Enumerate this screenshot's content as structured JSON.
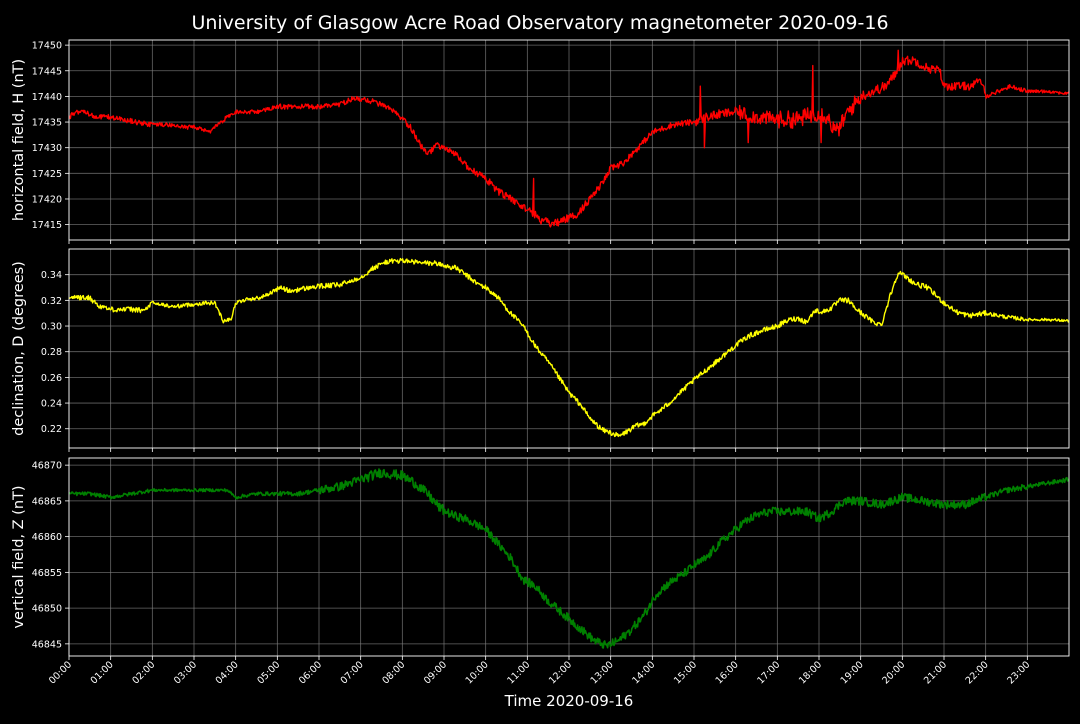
{
  "title": "University of Glasgow Acre Road Observatory magnetometer 2020-09-16",
  "chart_data": [
    {
      "type": "line",
      "ylabel": "horizontal field, H (nT)",
      "color": "#ff0000",
      "xlim": [
        0,
        24
      ],
      "ylim": [
        17412,
        17451
      ],
      "yticks": [
        17415,
        17420,
        17425,
        17430,
        17435,
        17440,
        17445,
        17450
      ],
      "ytick_labels": [
        "17415",
        "17420",
        "17425",
        "17430",
        "17435",
        "17440",
        "17445",
        "17450"
      ],
      "noise": [
        0.5,
        0.5,
        0.4,
        0.4,
        0.4,
        0.5,
        0.5,
        0.5,
        0.6,
        0.6,
        0.7,
        0.8,
        0.7,
        0.6,
        0.6,
        0.9,
        1.4,
        1.7,
        1.6,
        1.0,
        0.9,
        0.8,
        0.4,
        0.3
      ],
      "series": [
        {
          "x": [
            0,
            0.2,
            0.4,
            0.6,
            0.8,
            1.0,
            1.3,
            1.6,
            2.0,
            2.4,
            2.8,
            3.0,
            3.2,
            3.4,
            3.5,
            3.8,
            4.0,
            4.5,
            4.8,
            5.0,
            5.5,
            6.0,
            6.5,
            6.8,
            7.0,
            7.3,
            7.6,
            7.8,
            8.0,
            8.2,
            8.4,
            8.6,
            8.8,
            9.0,
            9.3,
            9.6,
            10.0,
            10.3,
            10.6,
            10.9,
            11.1,
            11.3,
            11.6,
            11.9,
            12.2,
            12.5,
            12.8,
            13.0,
            13.3,
            13.6,
            14.0,
            14.5,
            15.0,
            15.3,
            15.6,
            16.0,
            16.5,
            17.0,
            17.5,
            18.0,
            18.2,
            18.4,
            18.5,
            18.7,
            19.0,
            19.3,
            19.6,
            19.8,
            20.0,
            20.3,
            20.6,
            20.9,
            21.0,
            21.3,
            21.6,
            21.9,
            22.0,
            22.3,
            22.6,
            23.0,
            23.5,
            24.0
          ],
          "y": [
            17436,
            17437,
            17437,
            17436,
            17436,
            17436,
            17435.5,
            17435,
            17434.5,
            17434.5,
            17434,
            17434,
            17433.5,
            17433,
            17434,
            17436,
            17437,
            17437,
            17437.5,
            17438,
            17438,
            17438,
            17438.5,
            17439.5,
            17439.5,
            17439,
            17438,
            17437,
            17435.5,
            17434,
            17431,
            17428.5,
            17430.5,
            17430,
            17428.5,
            17426,
            17424,
            17421.5,
            17420,
            17418.5,
            17417.5,
            17416,
            17415,
            17416,
            17417,
            17420,
            17423,
            17426,
            17427,
            17429.5,
            17433,
            17434.5,
            17435,
            17436,
            17436.5,
            17437,
            17436,
            17435.5,
            17435.5,
            17437,
            17436,
            17433,
            17434,
            17437,
            17440,
            17441,
            17442,
            17444,
            17447,
            17447,
            17445.5,
            17445,
            17442,
            17442,
            17442,
            17443,
            17440,
            17441,
            17442,
            17441,
            17441,
            17440.5
          ]
        }
      ],
      "spikes": [
        {
          "x": 11.15,
          "y": 17424
        },
        {
          "x": 15.15,
          "y": 17442
        },
        {
          "x": 15.25,
          "y": 17430
        },
        {
          "x": 16.3,
          "y": 17431
        },
        {
          "x": 17.85,
          "y": 17446
        },
        {
          "x": 18.05,
          "y": 17431
        },
        {
          "x": 19.9,
          "y": 17449
        }
      ]
    },
    {
      "type": "line",
      "ylabel": "declination, D (degrees)",
      "color": "#ffff00",
      "xlim": [
        0,
        24
      ],
      "ylim": [
        0.205,
        0.36
      ],
      "yticks": [
        0.22,
        0.24,
        0.26,
        0.28,
        0.3,
        0.32,
        0.34
      ],
      "ytick_labels": [
        "0.22",
        "0.24",
        "0.26",
        "0.28",
        "0.30",
        "0.32",
        "0.34"
      ],
      "noise": [
        0.002,
        0.002,
        0.0015,
        0.0015,
        0.0015,
        0.002,
        0.002,
        0.002,
        0.002,
        0.002,
        0.002,
        0.002,
        0.002,
        0.002,
        0.002,
        0.002,
        0.002,
        0.002,
        0.002,
        0.002,
        0.002,
        0.002,
        0.0015,
        0.001
      ],
      "series": [
        {
          "x": [
            0,
            0.3,
            0.5,
            0.7,
            1.0,
            1.5,
            1.8,
            2.0,
            2.5,
            3.0,
            3.3,
            3.5,
            3.7,
            3.9,
            4.0,
            4.3,
            4.6,
            4.9,
            5.1,
            5.3,
            5.6,
            6.0,
            6.5,
            7.0,
            7.3,
            7.6,
            8.0,
            8.5,
            8.8,
            9.0,
            9.3,
            9.6,
            9.8,
            10.0,
            10.3,
            10.6,
            10.9,
            11.2,
            11.5,
            11.8,
            12.0,
            12.3,
            12.5,
            12.8,
            13.0,
            13.2,
            13.4,
            13.6,
            13.8,
            14.0,
            14.3,
            14.6,
            15.0,
            15.3,
            15.6,
            16.0,
            16.3,
            16.6,
            17.0,
            17.3,
            17.5,
            17.7,
            17.9,
            18.1,
            18.3,
            18.5,
            18.7,
            18.9,
            19.1,
            19.3,
            19.5,
            19.7,
            19.9,
            20.1,
            20.3,
            20.6,
            21.0,
            21.3,
            21.6,
            22.0,
            22.5,
            23.0,
            23.5,
            24.0
          ],
          "y": [
            0.323,
            0.322,
            0.322,
            0.316,
            0.313,
            0.313,
            0.312,
            0.318,
            0.315,
            0.317,
            0.318,
            0.318,
            0.304,
            0.306,
            0.318,
            0.321,
            0.322,
            0.327,
            0.33,
            0.327,
            0.329,
            0.331,
            0.332,
            0.338,
            0.345,
            0.35,
            0.351,
            0.349,
            0.349,
            0.347,
            0.345,
            0.338,
            0.333,
            0.33,
            0.322,
            0.31,
            0.3,
            0.284,
            0.272,
            0.258,
            0.248,
            0.238,
            0.228,
            0.219,
            0.217,
            0.214,
            0.218,
            0.222,
            0.224,
            0.23,
            0.237,
            0.246,
            0.258,
            0.266,
            0.274,
            0.285,
            0.292,
            0.296,
            0.3,
            0.305,
            0.306,
            0.303,
            0.312,
            0.311,
            0.314,
            0.32,
            0.32,
            0.313,
            0.308,
            0.303,
            0.301,
            0.323,
            0.342,
            0.338,
            0.333,
            0.33,
            0.318,
            0.311,
            0.308,
            0.31,
            0.307,
            0.305,
            0.305,
            0.304
          ]
        }
      ],
      "spikes": []
    },
    {
      "type": "line",
      "ylabel": "vertical field, Z (nT)",
      "color": "#008000",
      "xlim": [
        0,
        24
      ],
      "ylim": [
        46843.3,
        46871
      ],
      "yticks": [
        46845,
        46850,
        46855,
        46860,
        46865,
        46870
      ],
      "ytick_labels": [
        "46845",
        "46850",
        "46855",
        "46860",
        "46865",
        "46870"
      ],
      "noise": [
        0.25,
        0.25,
        0.2,
        0.2,
        0.25,
        0.3,
        0.6,
        0.7,
        0.7,
        0.6,
        0.6,
        0.6,
        0.6,
        0.6,
        0.6,
        0.6,
        0.6,
        0.6,
        0.6,
        0.6,
        0.6,
        0.6,
        0.4,
        0.3
      ],
      "series": [
        {
          "x": [
            0,
            0.5,
            1.0,
            1.5,
            2.0,
            2.5,
            3.0,
            3.5,
            3.8,
            4.0,
            4.5,
            5.0,
            5.5,
            6.0,
            6.5,
            7.0,
            7.5,
            8.0,
            8.3,
            8.6,
            8.9,
            9.2,
            9.5,
            10.0,
            10.3,
            10.6,
            10.9,
            11.2,
            11.5,
            11.8,
            12.0,
            12.3,
            12.6,
            12.9,
            13.2,
            13.5,
            13.8,
            14.1,
            14.4,
            14.8,
            15.0,
            15.3,
            15.6,
            15.9,
            16.2,
            16.5,
            16.8,
            17.1,
            17.4,
            17.7,
            18.0,
            18.3,
            18.6,
            19.0,
            19.5,
            20.0,
            20.5,
            21.0,
            21.5,
            22.0,
            22.5,
            23.0,
            23.5,
            24.0
          ],
          "y": [
            46866,
            46866,
            46865.5,
            46866,
            46866.5,
            46866.5,
            46866.5,
            46866.5,
            46866.5,
            46865.5,
            46866,
            46866,
            46866,
            46866.5,
            46867,
            46868,
            46869,
            46868.5,
            46867.5,
            46866,
            46864,
            46863,
            46862.5,
            46861,
            46859,
            46857,
            46854,
            46853,
            46851,
            46849.5,
            46848.5,
            46847,
            46845.5,
            46844.7,
            46845.5,
            46847,
            46849,
            46852,
            46853.5,
            46855,
            46856,
            46857,
            46859,
            46860.5,
            46862,
            46863,
            46863.5,
            46863.5,
            46863.5,
            46863.5,
            46862.5,
            46863.5,
            46865,
            46865,
            46864.5,
            46865.5,
            46865,
            46864.5,
            46864.5,
            46865.5,
            46866.5,
            46867,
            46867.5,
            46868
          ]
        }
      ],
      "spikes": []
    }
  ],
  "xaxis": {
    "label": "Time 2020-09-16",
    "ticks": [
      0,
      1,
      2,
      3,
      4,
      5,
      6,
      7,
      8,
      9,
      10,
      11,
      12,
      13,
      14,
      15,
      16,
      17,
      18,
      19,
      20,
      21,
      22,
      23
    ],
    "tick_labels": [
      "00:00",
      "01:00",
      "02:00",
      "03:00",
      "04:00",
      "05:00",
      "06:00",
      "07:00",
      "08:00",
      "09:00",
      "10:00",
      "11:00",
      "12:00",
      "13:00",
      "14:00",
      "15:00",
      "16:00",
      "17:00",
      "18:00",
      "19:00",
      "20:00",
      "21:00",
      "22:00",
      "23:00"
    ]
  },
  "grid": true,
  "colors": {
    "background": "#000000",
    "axes": "#ffffff",
    "grid": "#808080"
  }
}
